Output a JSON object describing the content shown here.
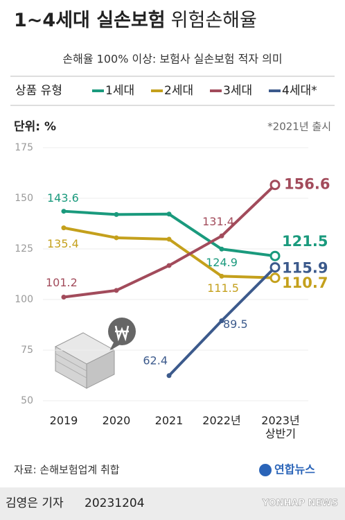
{
  "chart_data": {
    "type": "line",
    "title": [
      "1~4세대 실손보험",
      "위험손해율"
    ],
    "subtitle": "손해율 100% 이상: 보험사 실손보험 적자 의미",
    "legend_title": "상품 유형",
    "unit_label": "단위: %",
    "note": "*2021년 출시",
    "source": "자료: 손해보험업계 취합",
    "categories": [
      "2019",
      "2020",
      "2021",
      "2022년",
      "2023년\n상반기"
    ],
    "series": [
      {
        "name": "1세대",
        "color": "#1a9a7d",
        "values": [
          143.6,
          142.0,
          142.2,
          124.9,
          121.5
        ],
        "value_labels": [
          "143.6",
          null,
          null,
          "124.9",
          "121.5"
        ]
      },
      {
        "name": "2세대",
        "color": "#c4a01c",
        "values": [
          135.4,
          130.5,
          129.8,
          111.5,
          110.7
        ],
        "value_labels": [
          "135.4",
          null,
          null,
          "111.5",
          "110.7"
        ]
      },
      {
        "name": "3세대",
        "color": "#a24b5b",
        "values": [
          101.2,
          104.5,
          116.8,
          131.4,
          156.6
        ],
        "value_labels": [
          "101.2",
          null,
          null,
          "131.4",
          "156.6"
        ]
      },
      {
        "name": "4세대*",
        "color": "#3c5a8c",
        "values": [
          null,
          null,
          62.4,
          89.5,
          115.9
        ],
        "value_labels": [
          null,
          null,
          "62.4",
          "89.5",
          "115.9"
        ]
      }
    ],
    "ylim": [
      50,
      175
    ],
    "yticks": [
      50,
      75,
      100,
      125,
      150,
      175
    ],
    "grid": true
  },
  "footer": {
    "logo": "연합뉴스",
    "byline": "김영은 기자",
    "date": "20231204",
    "watermark": "YONHAP NEWS"
  }
}
